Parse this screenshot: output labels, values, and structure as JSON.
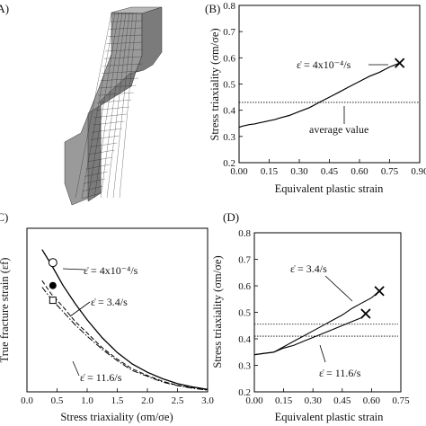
{
  "panels": {
    "a": {
      "label": "(A)"
    },
    "b": {
      "label": "(B)"
    },
    "c": {
      "label": "(C)"
    },
    "d": {
      "label": "(D)"
    }
  },
  "chart_data": [
    {
      "id": "B",
      "type": "line",
      "xlabel": "Equivalent plastic strain",
      "ylabel": "Stress triaxiality (σm/σe)",
      "xlim": [
        0.0,
        0.9
      ],
      "ylim": [
        0.2,
        0.8
      ],
      "xticks": [
        "0.00",
        "0.15",
        "0.30",
        "0.45",
        "0.60",
        "0.75",
        "0.90"
      ],
      "yticks": [
        "0.2",
        "0.3",
        "0.4",
        "0.5",
        "0.6",
        "0.7",
        "0.8"
      ],
      "series": [
        {
          "x": [
            0.0,
            0.02,
            0.05,
            0.08,
            0.1,
            0.12,
            0.15,
            0.18,
            0.2,
            0.25,
            0.3,
            0.35,
            0.4,
            0.45,
            0.5,
            0.55,
            0.6,
            0.65,
            0.7,
            0.75,
            0.8
          ],
          "y": [
            0.335,
            0.34,
            0.345,
            0.348,
            0.352,
            0.355,
            0.36,
            0.365,
            0.37,
            0.38,
            0.395,
            0.41,
            0.43,
            0.45,
            0.47,
            0.49,
            0.51,
            0.53,
            0.545,
            0.565,
            0.58
          ]
        }
      ],
      "fracture_x": [
        0.8,
        0.58
      ],
      "average_line": 0.43,
      "annotations": {
        "rate": "ε̇ = 4x10⁻⁴/s",
        "average": "average value"
      }
    },
    {
      "id": "C",
      "type": "line",
      "xlabel": "Stress triaxiality (σm/σe)",
      "ylabel": "True fracture strain (εf)",
      "xlim": [
        0.0,
        3.0
      ],
      "ylim": [
        0.0,
        1.0
      ],
      "xticks": [
        "0.0",
        "0.5",
        "1.0",
        "1.5",
        "2.0",
        "2.5",
        "3.0"
      ],
      "series": [
        {
          "label": "ε̇ = 4x10⁻⁴/s",
          "x": [
            0.25,
            0.4,
            0.6,
            0.8,
            1.0,
            1.25,
            1.5,
            1.75,
            2.0,
            2.25,
            2.5,
            2.75,
            3.0
          ],
          "y": [
            0.87,
            0.78,
            0.65,
            0.54,
            0.44,
            0.33,
            0.24,
            0.17,
            0.12,
            0.08,
            0.05,
            0.03,
            0.015
          ]
        },
        {
          "label": "ε̇ = 3.4/s",
          "x": [
            0.25,
            0.4,
            0.6,
            0.8,
            1.0,
            1.25,
            1.5,
            1.75,
            2.0,
            2.25,
            2.5,
            2.75,
            3.0
          ],
          "y": [
            0.68,
            0.6,
            0.52,
            0.43,
            0.36,
            0.27,
            0.2,
            0.14,
            0.1,
            0.065,
            0.04,
            0.025,
            0.012
          ]
        },
        {
          "label": "ε̇ = 11.6/s",
          "x": [
            0.25,
            0.4,
            0.6,
            0.8,
            1.0,
            1.25,
            1.5,
            1.75,
            2.0,
            2.25,
            2.5,
            2.75,
            3.0
          ],
          "y": [
            0.64,
            0.57,
            0.49,
            0.41,
            0.34,
            0.26,
            0.19,
            0.13,
            0.095,
            0.06,
            0.038,
            0.022,
            0.01
          ]
        }
      ],
      "points": [
        {
          "x": 0.43,
          "y": 0.79,
          "marker": "open-circle"
        },
        {
          "x": 0.43,
          "y": 0.65,
          "marker": "filled-circle"
        },
        {
          "x": 0.43,
          "y": 0.56,
          "marker": "open-square"
        }
      ],
      "annotations": {
        "rate1": "ε̇ = 4x10⁻⁴/s",
        "rate2": "ε̇ = 3.4/s",
        "rate3": "ε̇ = 11.6/s"
      }
    },
    {
      "id": "D",
      "type": "line",
      "xlabel": "Equivalent plastic strain",
      "ylabel": "Stress triaxiality (σm/σe)",
      "xlim": [
        0.0,
        0.75
      ],
      "ylim": [
        0.2,
        0.8
      ],
      "xticks": [
        "0.00",
        "0.15",
        "0.30",
        "0.45",
        "0.60",
        "0.75"
      ],
      "yticks": [
        "0.2",
        "0.3",
        "0.4",
        "0.5",
        "0.6",
        "0.7",
        "0.8"
      ],
      "series": [
        {
          "label": "ε̇ = 3.4/s",
          "x": [
            0.0,
            0.05,
            0.1,
            0.15,
            0.2,
            0.25,
            0.3,
            0.35,
            0.4,
            0.45,
            0.5,
            0.55,
            0.6,
            0.64
          ],
          "y": [
            0.34,
            0.345,
            0.35,
            0.37,
            0.39,
            0.41,
            0.43,
            0.45,
            0.47,
            0.49,
            0.515,
            0.535,
            0.555,
            0.58
          ]
        },
        {
          "label": "ε̇ = 11.6/s",
          "x": [
            0.0,
            0.05,
            0.1,
            0.15,
            0.2,
            0.25,
            0.3,
            0.35,
            0.4,
            0.45,
            0.5,
            0.55,
            0.57
          ],
          "y": [
            0.34,
            0.345,
            0.35,
            0.365,
            0.375,
            0.39,
            0.405,
            0.42,
            0.435,
            0.45,
            0.465,
            0.48,
            0.495
          ]
        }
      ],
      "fracture_x": [
        [
          0.64,
          0.58
        ],
        [
          0.57,
          0.495
        ]
      ],
      "average_lines": [
        0.455,
        0.41
      ],
      "annotations": {
        "rate1": "ε̇ = 3.4/s",
        "rate2": "ε̇ = 11.6/s"
      }
    }
  ]
}
